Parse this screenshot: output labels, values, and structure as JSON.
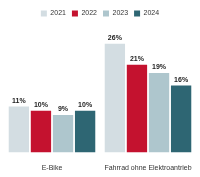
{
  "chart_data": {
    "type": "bar",
    "categories": [
      "E-Bike",
      "Fahrrad ohne Elektroantrieb"
    ],
    "series": [
      {
        "name": "2021",
        "color": "#d3dde2",
        "values": [
          11,
          26
        ],
        "value_labels": [
          "11%",
          "26%"
        ]
      },
      {
        "name": "2022",
        "color": "#c4122f",
        "values": [
          10,
          21
        ],
        "value_labels": [
          "10%",
          "21%"
        ]
      },
      {
        "name": "2023",
        "color": "#aec6cd",
        "values": [
          9,
          19
        ],
        "value_labels": [
          "9%",
          "19%"
        ]
      },
      {
        "name": "2024",
        "color": "#2e6673",
        "values": [
          10,
          16
        ],
        "value_labels": [
          "10%",
          "16%"
        ]
      }
    ],
    "legend": "top",
    "grid": false,
    "data_labels": true,
    "tick_labels": "x"
  }
}
